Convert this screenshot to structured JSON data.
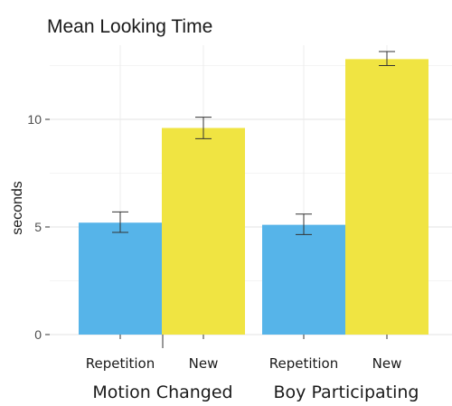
{
  "chart_data": {
    "type": "bar",
    "title": "Mean Looking Time",
    "ylabel": "seconds",
    "ylim": [
      0,
      13.5
    ],
    "yticks": [
      0,
      5,
      10
    ],
    "grid": true,
    "groups": [
      {
        "label": "Motion Changed",
        "bars": [
          {
            "category": "Repetition",
            "value": 5.2,
            "error": [
              4.75,
              5.7
            ],
            "color": "#56B4E9"
          },
          {
            "category": "New",
            "value": 9.6,
            "error": [
              9.1,
              10.1
            ],
            "color": "#F0E442"
          }
        ]
      },
      {
        "label": "Boy Participating",
        "bars": [
          {
            "category": "Repetition",
            "value": 5.1,
            "error": [
              4.65,
              5.6
            ],
            "color": "#56B4E9"
          },
          {
            "category": "New",
            "value": 12.8,
            "error": [
              12.5,
              13.15
            ],
            "color": "#F0E442"
          }
        ]
      }
    ]
  }
}
